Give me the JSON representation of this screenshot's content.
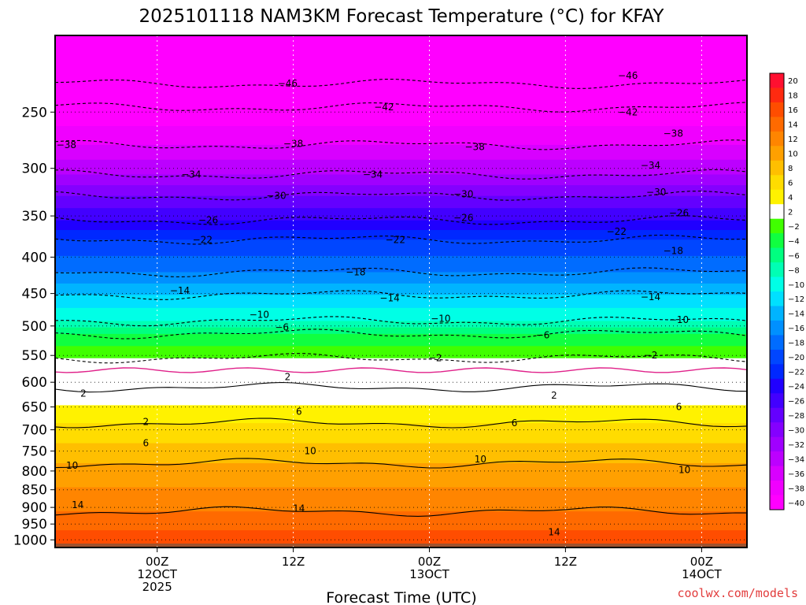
{
  "chart_data": {
    "type": "heatmap",
    "title": "2025101118 NAM3KM Forecast Temperature (°C) for KFAY",
    "xlabel": "Forecast Time (UTC)",
    "ylabel": "",
    "y_scale": "log-pressure",
    "y_range_hpa": [
      1025,
      195
    ],
    "y_ticks": [
      250,
      300,
      350,
      400,
      450,
      500,
      550,
      600,
      650,
      700,
      750,
      800,
      850,
      900,
      950,
      1000
    ],
    "y_tick_labels": [
      "250",
      "300",
      "350",
      "400",
      "450",
      "500",
      "550",
      "600",
      "650",
      "700",
      "750",
      "800",
      "850",
      "900",
      "950",
      "1000"
    ],
    "x_range_hours": [
      -9,
      52
    ],
    "x_ticks": [
      {
        "hour": 0,
        "lines": [
          "00Z",
          "12OCT",
          "2025"
        ]
      },
      {
        "hour": 12,
        "lines": [
          "12Z"
        ]
      },
      {
        "hour": 24,
        "lines": [
          "00Z",
          "13OCT"
        ]
      },
      {
        "hour": 36,
        "lines": [
          "12Z"
        ]
      },
      {
        "hour": 48,
        "lines": [
          "00Z",
          "14OCT"
        ]
      }
    ],
    "colorbar": {
      "labels": [
        "20",
        "18",
        "16",
        "14",
        "12",
        "10",
        "8",
        "6",
        "4",
        "2",
        "-2",
        "-4",
        "-6",
        "-8",
        "-10",
        "-12",
        "-14",
        "-16",
        "-18",
        "-20",
        "-22",
        "-24",
        "-26",
        "-28",
        "-30",
        "-32",
        "-34",
        "-36",
        "-38",
        "-40"
      ],
      "colors": [
        "#ff1030",
        "#ff2a10",
        "#ff4d00",
        "#ff6a00",
        "#ff8500",
        "#ffa000",
        "#ffbf00",
        "#ffdc00",
        "#fff200",
        "#ffffff",
        "#40ff00",
        "#10ff40",
        "#00ff80",
        "#00ffb4",
        "#00ffe6",
        "#00e0ff",
        "#00b4ff",
        "#0090ff",
        "#006cff",
        "#0046ff",
        "#0028ff",
        "#2000ff",
        "#4200ff",
        "#6400ff",
        "#8400ff",
        "#a000ff",
        "#bc00ff",
        "#d800ff",
        "#f000ff",
        "#ff00ff"
      ],
      "colors_bottom_to_top": true
    },
    "isotherms": [
      {
        "label": "-46",
        "pressure": 228
      },
      {
        "label": "-42",
        "pressure": 246
      },
      {
        "label": "-38",
        "pressure": 278
      },
      {
        "label": "-34",
        "pressure": 306
      },
      {
        "label": "-30",
        "pressure": 328
      },
      {
        "label": "-26",
        "pressure": 355
      },
      {
        "label": "-22",
        "pressure": 378
      },
      {
        "label": "-18",
        "pressure": 420
      },
      {
        "label": "-14",
        "pressure": 452
      },
      {
        "label": "-10",
        "pressure": 492
      },
      {
        "label": "-6",
        "pressure": 513
      },
      {
        "label": "-2",
        "pressure": 555
      },
      {
        "label": "2",
        "pressure": 610
      },
      {
        "label": "6",
        "pressure": 685
      },
      {
        "label": "10",
        "pressure": 780
      },
      {
        "label": "14",
        "pressure": 912
      }
    ],
    "contour_label_positions": [
      {
        "label": "-46",
        "hour": 11.5,
        "pressure": 228
      },
      {
        "label": "-46",
        "hour": 41.5,
        "pressure": 222
      },
      {
        "label": "-42",
        "hour": 20,
        "pressure": 246
      },
      {
        "label": "-42",
        "hour": 41.5,
        "pressure": 250
      },
      {
        "label": "-38",
        "hour": -8,
        "pressure": 278
      },
      {
        "label": "-38",
        "hour": 12,
        "pressure": 277
      },
      {
        "label": "-38",
        "hour": 28,
        "pressure": 280
      },
      {
        "label": "-38",
        "hour": 45.5,
        "pressure": 268
      },
      {
        "label": "-34",
        "hour": 3,
        "pressure": 306
      },
      {
        "label": "-34",
        "hour": 19,
        "pressure": 306
      },
      {
        "label": "-34",
        "hour": 43.5,
        "pressure": 297
      },
      {
        "label": "-30",
        "hour": 10.5,
        "pressure": 328
      },
      {
        "label": "-30",
        "hour": 27,
        "pressure": 326
      },
      {
        "label": "-30",
        "hour": 44,
        "pressure": 324
      },
      {
        "label": "-26",
        "hour": 4.5,
        "pressure": 355
      },
      {
        "label": "-26",
        "hour": 27,
        "pressure": 352
      },
      {
        "label": "-26",
        "hour": 46,
        "pressure": 347
      },
      {
        "label": "-22",
        "hour": 4,
        "pressure": 378
      },
      {
        "label": "-22",
        "hour": 21,
        "pressure": 378
      },
      {
        "label": "-22",
        "hour": 40.5,
        "pressure": 368
      },
      {
        "label": "-18",
        "hour": 17.5,
        "pressure": 420
      },
      {
        "label": "-18",
        "hour": 45.5,
        "pressure": 392
      },
      {
        "label": "-14",
        "hour": 2,
        "pressure": 446
      },
      {
        "label": "-14",
        "hour": 20.5,
        "pressure": 457
      },
      {
        "label": "-14",
        "hour": 43.5,
        "pressure": 455
      },
      {
        "label": "-10",
        "hour": 9,
        "pressure": 482
      },
      {
        "label": "-10",
        "hour": 25,
        "pressure": 488
      },
      {
        "label": "-10",
        "hour": 46,
        "pressure": 490
      },
      {
        "label": "-6",
        "hour": 11,
        "pressure": 502
      },
      {
        "label": "-6",
        "hour": 34,
        "pressure": 515
      },
      {
        "label": "-2",
        "hour": 24.5,
        "pressure": 555
      },
      {
        "label": "-2",
        "hour": 43.5,
        "pressure": 550
      },
      {
        "label": "2",
        "hour": -6.5,
        "pressure": 622
      },
      {
        "label": "2",
        "hour": 11.5,
        "pressure": 590
      },
      {
        "label": "2",
        "hour": 35,
        "pressure": 626
      },
      {
        "label": "2",
        "hour": -1,
        "pressure": 682
      },
      {
        "label": "6",
        "hour": -1,
        "pressure": 731
      },
      {
        "label": "6",
        "hour": 12.5,
        "pressure": 660
      },
      {
        "label": "6",
        "hour": 31.5,
        "pressure": 685
      },
      {
        "label": "6",
        "hour": 46,
        "pressure": 650
      },
      {
        "label": "10",
        "hour": -7.5,
        "pressure": 786
      },
      {
        "label": "10",
        "hour": 13.5,
        "pressure": 750
      },
      {
        "label": "10",
        "hour": 28.5,
        "pressure": 770
      },
      {
        "label": "10",
        "hour": 46.5,
        "pressure": 797
      },
      {
        "label": "14",
        "hour": -7,
        "pressure": 893
      },
      {
        "label": "14",
        "hour": 12.5,
        "pressure": 903
      },
      {
        "label": "14",
        "hour": 35,
        "pressure": 975
      }
    ],
    "ground_pressure": 1012
  },
  "credit": "coolwx.com/models"
}
